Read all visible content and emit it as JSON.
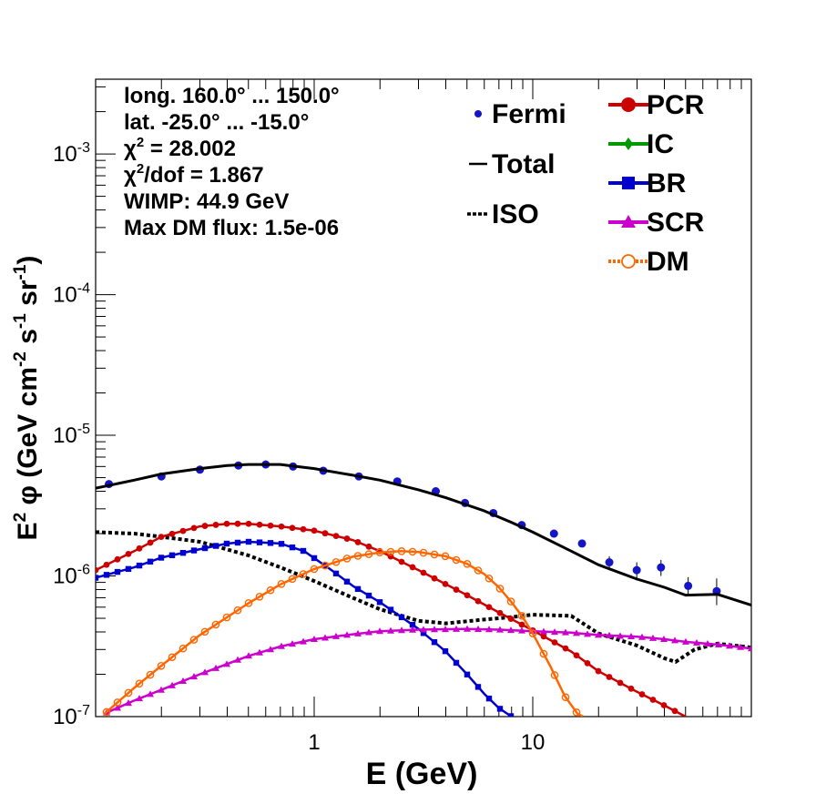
{
  "chart_data": {
    "type": "scatter",
    "xscale": "log",
    "yscale": "log",
    "xlim": [
      0.1,
      100
    ],
    "ylim": [
      1e-07,
      0.0034
    ],
    "xlabel": "E (GeV)",
    "ylabel_parts": [
      "E",
      "2",
      " φ (GeV cm",
      "-2",
      " s",
      "-1",
      " sr",
      "-1",
      ")"
    ],
    "x_ticks": [
      {
        "value": 1,
        "label": "1"
      },
      {
        "value": 10,
        "label": "10"
      }
    ],
    "y_ticks": [
      {
        "value": 1e-07,
        "base": "10",
        "exp": "-7"
      },
      {
        "value": 1e-06,
        "base": "10",
        "exp": "-6"
      },
      {
        "value": 1e-05,
        "base": "10",
        "exp": "-5"
      },
      {
        "value": 0.0001,
        "base": "10",
        "exp": "-4"
      },
      {
        "value": 0.001,
        "base": "10",
        "exp": "-3"
      }
    ],
    "info": [
      {
        "text": "long. 160.0° ... 150.0°"
      },
      {
        "text": "lat. -25.0° ... -15.0°"
      },
      {
        "pre": "χ",
        "sup": "2",
        "post": " = 28.002"
      },
      {
        "pre": "χ",
        "sup": "2",
        "post": "/dof = 1.867"
      },
      {
        "text": "WIMP: 44.9 GeV"
      },
      {
        "text": "Max DM flux: 1.5e-06"
      }
    ],
    "legend_placement": "top-right",
    "legend": [
      {
        "label": "Fermi",
        "style": "points",
        "color": "#1414c8"
      },
      {
        "label": "Total",
        "style": "solid",
        "color": "#000000"
      },
      {
        "label": "ISO",
        "style": "dotted",
        "color": "#000000"
      },
      {
        "label": "PCR",
        "style": "circle-line",
        "color": "#cc0000"
      },
      {
        "label": "IC",
        "style": "diamond-line",
        "color": "#009900"
      },
      {
        "label": "BR",
        "style": "square-line",
        "color": "#0000cc"
      },
      {
        "label": "SCR",
        "style": "triangle-line",
        "color": "#cc00cc"
      },
      {
        "label": "DM",
        "style": "open-circle-line",
        "color": "#ff6600"
      }
    ],
    "series": [
      {
        "name": "Fermi",
        "style": "points",
        "color": "#1414c8",
        "x": [
          0.115,
          0.2,
          0.3,
          0.45,
          0.6,
          0.8,
          1.1,
          1.6,
          2.4,
          3.6,
          4.9,
          6.6,
          8.9,
          12.5,
          16.8,
          22.4,
          29.9,
          38.6,
          51.4,
          69.4
        ],
        "y": [
          4.5e-06,
          5.1e-06,
          5.7e-06,
          6.1e-06,
          6.2e-06,
          6e-06,
          5.6e-06,
          5.1e-06,
          4.7e-06,
          4e-06,
          3.3e-06,
          2.8e-06,
          2.3e-06,
          2e-06,
          1.7e-06,
          1.25e-06,
          1.1e-06,
          1.15e-06,
          8.5e-07,
          7.8e-07
        ],
        "y_high": [
          4.7e-06,
          5.3e-06,
          5.9e-06,
          6.3e-06,
          6.4e-06,
          6.2e-06,
          5.8e-06,
          5.3e-06,
          4.9e-06,
          4.15e-06,
          3.45e-06,
          2.95e-06,
          2.4e-06,
          2.1e-06,
          1.8e-06,
          1.38e-06,
          1.25e-06,
          1.3e-06,
          9.8e-07,
          9.6e-07
        ],
        "y_low": [
          4.3e-06,
          4.9e-06,
          5.5e-06,
          5.9e-06,
          6e-06,
          5.8e-06,
          5.4e-06,
          4.9e-06,
          4.5e-06,
          3.85e-06,
          3.15e-06,
          2.65e-06,
          2.2e-06,
          1.9e-06,
          1.6e-06,
          1.12e-06,
          9.5e-07,
          1e-06,
          7.2e-07,
          6.2e-07
        ]
      },
      {
        "name": "Total",
        "style": "solid",
        "color": "#000000",
        "x": [
          0.1,
          0.15,
          0.2,
          0.3,
          0.4,
          0.5,
          0.7,
          1.0,
          1.5,
          2.0,
          3.0,
          4.0,
          6.0,
          8.0,
          10.0,
          15.0,
          20.0,
          30.0,
          40.0,
          50.0,
          70.0,
          100.0
        ],
        "y": [
          4.2e-06,
          4.8e-06,
          5.3e-06,
          5.8e-06,
          6.1e-06,
          6.2e-06,
          6.2e-06,
          5.8e-06,
          5.2e-06,
          4.8e-06,
          4.1e-06,
          3.6e-06,
          2.9e-06,
          2.4e-06,
          2.05e-06,
          1.5e-06,
          1.2e-06,
          9.5e-07,
          8.3e-07,
          7.3e-07,
          7.4e-07,
          6.2e-07
        ]
      },
      {
        "name": "ISO",
        "style": "dotted",
        "color": "#000000",
        "x": [
          0.1,
          0.15,
          0.2,
          0.3,
          0.5,
          0.7,
          1.0,
          1.5,
          2.0,
          3.0,
          4.0,
          6.0,
          8.0,
          10.0,
          15.0,
          20.0,
          30.0,
          40.0,
          45.0,
          55.0,
          70.0,
          100.0
        ],
        "y": [
          2.05e-06,
          2e-06,
          1.9e-06,
          1.75e-06,
          1.4e-06,
          1.15e-06,
          9.2e-07,
          7e-07,
          5.8e-07,
          4.8e-07,
          4.6e-07,
          4.9e-07,
          5.1e-07,
          5.3e-07,
          5.2e-07,
          3.9e-07,
          3.2e-07,
          2.6e-07,
          2.45e-07,
          3e-07,
          3.3e-07,
          3.1e-07
        ]
      },
      {
        "name": "PCR",
        "style": "circle-line",
        "color": "#cc0000",
        "x": [
          0.1,
          0.15,
          0.2,
          0.3,
          0.4,
          0.5,
          0.7,
          1.0,
          1.5,
          2.0,
          3.0,
          5.0,
          7.0,
          10.0,
          15.0,
          20.0,
          30.0,
          40.0,
          50.0
        ],
        "y": [
          1.1e-06,
          1.5e-06,
          1.9e-06,
          2.25e-06,
          2.35e-06,
          2.35e-06,
          2.25e-06,
          2.1e-06,
          1.8e-06,
          1.5e-06,
          1.1e-06,
          7.3e-07,
          5.5e-07,
          4.1e-07,
          2.9e-07,
          2.1e-07,
          1.5e-07,
          1.2e-07,
          1e-07
        ]
      },
      {
        "name": "BR",
        "style": "square-line",
        "color": "#0000cc",
        "x": [
          0.1,
          0.15,
          0.2,
          0.3,
          0.4,
          0.5,
          0.7,
          0.9,
          1.2,
          1.5,
          2.0,
          3.0,
          4.0,
          5.0,
          6.0,
          7.0,
          8.0
        ],
        "y": [
          9.7e-07,
          1.15e-06,
          1.35e-06,
          1.55e-06,
          1.7e-06,
          1.75e-06,
          1.7e-06,
          1.5e-06,
          1.1e-06,
          8.5e-07,
          6.5e-07,
          4.2e-07,
          2.9e-07,
          2e-07,
          1.45e-07,
          1.15e-07,
          1e-07
        ]
      },
      {
        "name": "SCR",
        "style": "triangle-line",
        "color": "#cc00cc",
        "x": [
          0.11,
          0.15,
          0.2,
          0.3,
          0.5,
          0.7,
          1.0,
          1.5,
          2.0,
          3.0,
          5.0,
          7.0,
          10.0,
          15.0,
          20.0,
          30.0,
          40.0,
          50.0,
          70.0,
          100.0
        ],
        "y": [
          1.05e-07,
          1.3e-07,
          1.55e-07,
          2e-07,
          2.7e-07,
          3.15e-07,
          3.55e-07,
          3.85e-07,
          4.05e-07,
          4.15e-07,
          4.2e-07,
          4.15e-07,
          4.05e-07,
          3.95e-07,
          3.8e-07,
          3.7e-07,
          3.55e-07,
          3.4e-07,
          3.25e-07,
          3.05e-07
        ]
      },
      {
        "name": "DM",
        "style": "open-circle-line",
        "color": "#ff6600",
        "x": [
          0.11,
          0.15,
          0.2,
          0.3,
          0.5,
          0.7,
          1.0,
          1.5,
          2.0,
          2.5,
          3.0,
          4.0,
          5.0,
          6.0,
          7.0,
          8.0,
          9.0,
          10.0,
          12.0,
          14.0,
          16.0,
          17.0
        ],
        "y": [
          1.05e-07,
          1.6e-07,
          2.3e-07,
          3.8e-07,
          6.4e-07,
          8.7e-07,
          1.12e-06,
          1.37e-06,
          1.47e-06,
          1.5e-06,
          1.48e-06,
          1.38e-06,
          1.22e-06,
          1.03e-06,
          8.3e-07,
          6.5e-07,
          5.1e-07,
          3.9e-07,
          2.3e-07,
          1.4e-07,
          1.05e-07,
          1e-07
        ]
      }
    ]
  }
}
